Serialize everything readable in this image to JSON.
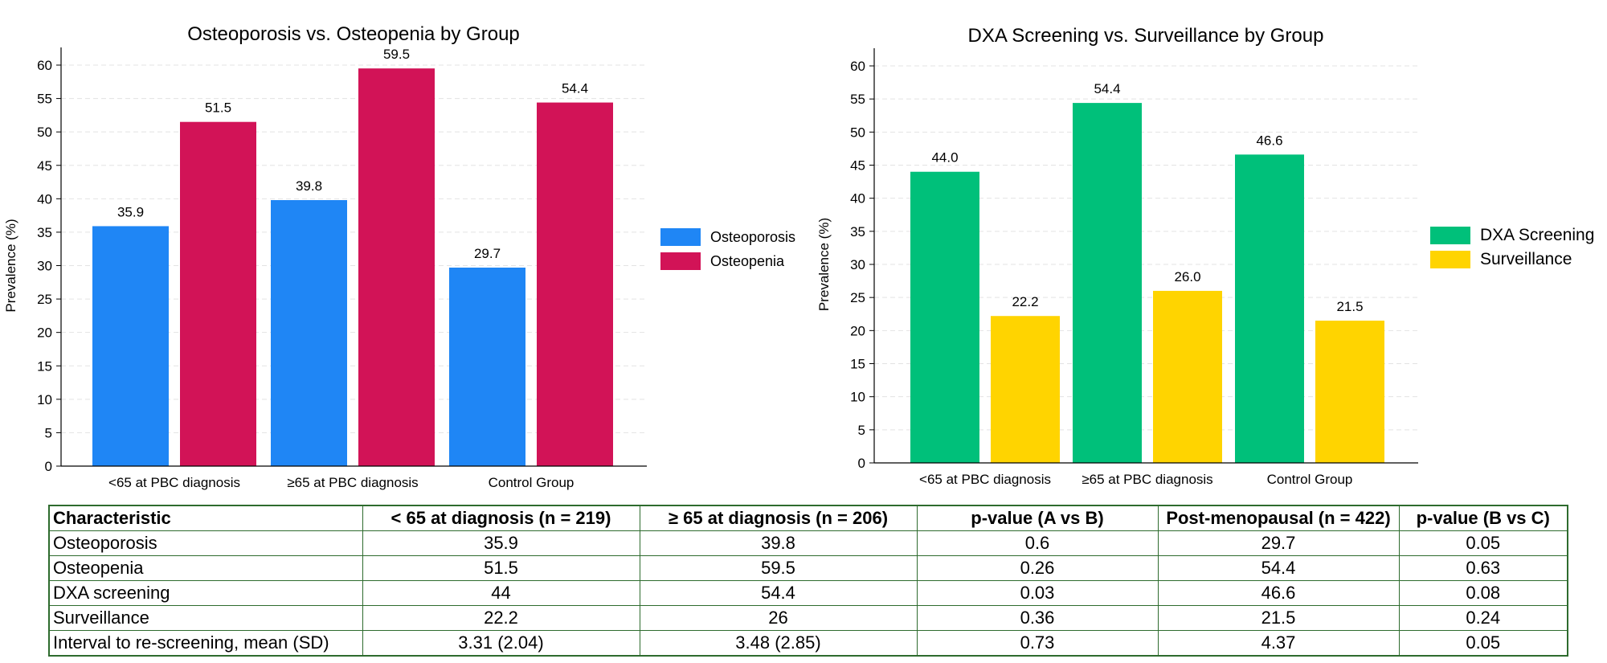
{
  "colors": {
    "osteoporosis": "#1f86f5",
    "osteopenia": "#d21357",
    "dxa": "#00c07a",
    "surveillance": "#ffd400",
    "table_border": "#2e6b2e",
    "grid": "#e3e3e3"
  },
  "chart_data": [
    {
      "type": "bar",
      "title": "Osteoporosis vs. Osteopenia by Group",
      "ylabel": "Prevalence (%)",
      "xlabel": "",
      "ylim": [
        0,
        60
      ],
      "yticks": [
        "0",
        "5",
        "10",
        "15",
        "20",
        "25",
        "30",
        "35",
        "40",
        "45",
        "50",
        "55",
        "60"
      ],
      "grid": true,
      "legend_position": "right",
      "categories": [
        "<65 at PBC diagnosis",
        "≥65 at PBC diagnosis",
        "Control Group"
      ],
      "series": [
        {
          "name": "Osteoporosis",
          "values": [
            35.9,
            39.8,
            29.7
          ],
          "labels": [
            "35.9",
            "39.8",
            "29.7"
          ],
          "color": "#1f86f5"
        },
        {
          "name": "Osteopenia",
          "values": [
            51.5,
            59.5,
            54.4
          ],
          "labels": [
            "51.5",
            "59.5",
            "54.4"
          ],
          "color": "#d21357"
        }
      ]
    },
    {
      "type": "bar",
      "title": "DXA Screening vs. Surveillance by Group",
      "ylabel": "Prevalence (%)",
      "xlabel": "",
      "ylim": [
        0,
        60
      ],
      "yticks": [
        "0",
        "5",
        "10",
        "15",
        "20",
        "25",
        "30",
        "35",
        "40",
        "45",
        "50",
        "55",
        "60"
      ],
      "grid": true,
      "legend_position": "right",
      "categories": [
        "<65 at PBC diagnosis",
        "≥65 at PBC diagnosis",
        "Control Group"
      ],
      "series": [
        {
          "name": "DXA Screening",
          "values": [
            44.0,
            54.4,
            46.6
          ],
          "labels": [
            "44.0",
            "54.4",
            "46.6"
          ],
          "color": "#00c07a"
        },
        {
          "name": "Surveillance",
          "values": [
            22.2,
            26.0,
            21.5
          ],
          "labels": [
            "22.2",
            "26.0",
            "21.5"
          ],
          "color": "#ffd400"
        }
      ]
    }
  ],
  "table": {
    "headers": [
      "Characteristic",
      "< 65 at diagnosis (n = 219)",
      "≥ 65 at diagnosis (n = 206)",
      "p-value (A vs B)",
      "Post-menopausal (n = 422)",
      "p-value (B vs C)"
    ],
    "rows": [
      [
        "Osteoporosis",
        "35.9",
        "39.8",
        "0.6",
        "29.7",
        "0.05"
      ],
      [
        "Osteopenia",
        "51.5",
        "59.5",
        "0.26",
        "54.4",
        "0.63"
      ],
      [
        "DXA screening",
        "44",
        "54.4",
        "0.03",
        "46.6",
        "0.08"
      ],
      [
        "Surveillance",
        "22.2",
        "26",
        "0.36",
        "21.5",
        "0.24"
      ],
      [
        "Interval to re-screening, mean (SD)",
        "3.31 (2.04)",
        "3.48 (2.85)",
        "0.73",
        "4.37",
        "0.05"
      ]
    ]
  }
}
